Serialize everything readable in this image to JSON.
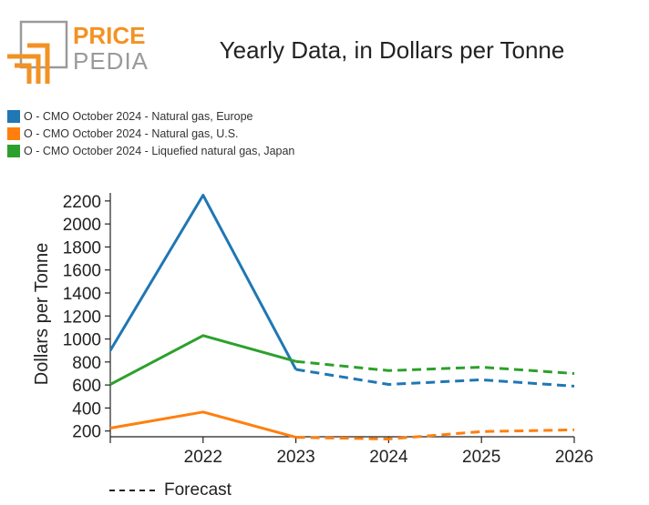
{
  "logo": {
    "top_word": "PRICE",
    "bottom_word": "PEDIA",
    "accent_color": "#f39223",
    "gray_color": "#9a9a9a"
  },
  "chart_data": {
    "type": "line",
    "title": "Yearly Data, in Dollars per Tonne",
    "ylabel": "Dollars per Tonne",
    "xlabel": "",
    "x_ticks": [
      "2022",
      "2023",
      "2024",
      "2025",
      "2026"
    ],
    "x_range": [
      2021,
      2026
    ],
    "ylim": [
      150,
      2270
    ],
    "y_ticks": [
      200,
      400,
      600,
      800,
      1000,
      1200,
      1400,
      1600,
      1800,
      2000,
      2200
    ],
    "grid": false,
    "legend_position": "top-left",
    "forecast_label": "Forecast",
    "series": [
      {
        "name": "O - CMO October 2024 - Natural gas, Europe",
        "color": "#1f77b4",
        "actual": [
          [
            2021,
            900
          ],
          [
            2022,
            2250
          ],
          [
            2023,
            735
          ]
        ],
        "forecast": [
          [
            2023,
            735
          ],
          [
            2024,
            605
          ],
          [
            2025,
            645
          ],
          [
            2026,
            590
          ]
        ]
      },
      {
        "name": "O - CMO October 2024 - Natural gas, U.S.",
        "color": "#ff7f0e",
        "actual": [
          [
            2021,
            225
          ],
          [
            2022,
            365
          ],
          [
            2023,
            145
          ]
        ],
        "forecast": [
          [
            2023,
            145
          ],
          [
            2024,
            130
          ],
          [
            2025,
            195
          ],
          [
            2026,
            210
          ]
        ]
      },
      {
        "name": "O - CMO October 2024 - Liquefied natural gas, Japan",
        "color": "#2ca02c",
        "actual": [
          [
            2021,
            605
          ],
          [
            2022,
            1030
          ],
          [
            2023,
            805
          ]
        ],
        "forecast": [
          [
            2023,
            805
          ],
          [
            2024,
            725
          ],
          [
            2025,
            755
          ],
          [
            2026,
            700
          ]
        ]
      }
    ]
  }
}
